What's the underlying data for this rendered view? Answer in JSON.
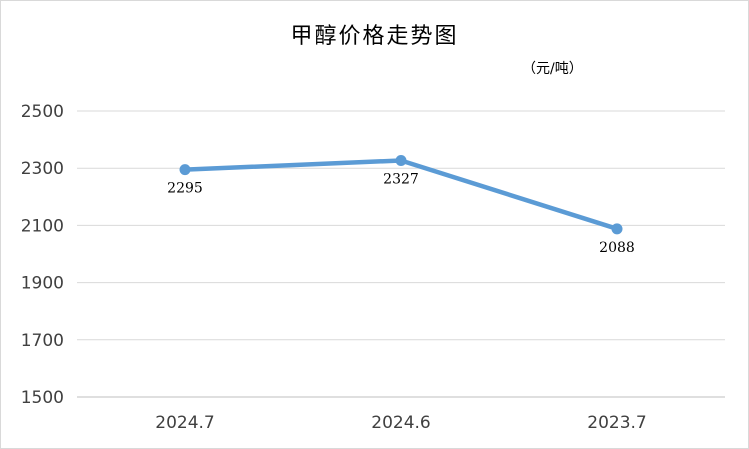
{
  "chart_data": {
    "type": "line",
    "title": "甲醇价格走势图",
    "unit_label": "（元/吨）",
    "categories": [
      "2024.7",
      "2024.6",
      "2023.7"
    ],
    "series": [
      {
        "values": [
          2295,
          2327,
          2088
        ],
        "color": "#5b9bd5"
      }
    ],
    "ylim": [
      1500,
      2500
    ],
    "yticks": [
      1500,
      1700,
      1900,
      2100,
      2300,
      2500
    ],
    "xlabel": "",
    "ylabel": "",
    "grid": true,
    "legend": "none",
    "data_labels": true
  }
}
